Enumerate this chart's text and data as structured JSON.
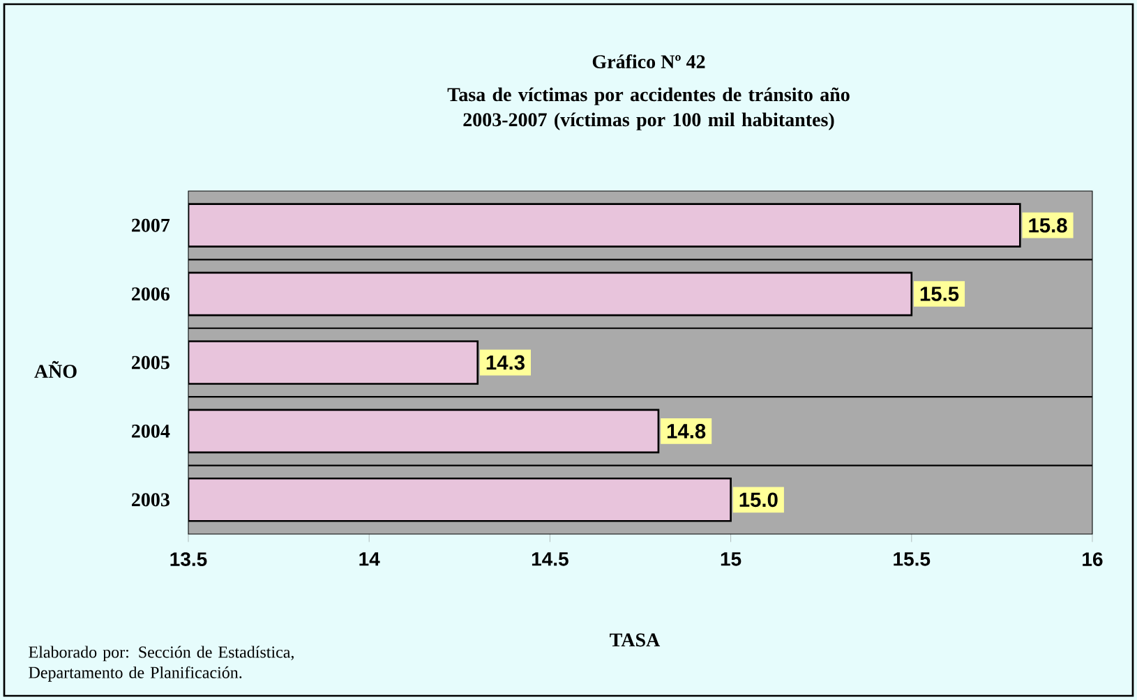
{
  "chart_data": {
    "type": "bar",
    "orientation": "horizontal",
    "title": "Gráfico Nº 42",
    "subtitle": "Tasa de víctimas por accidentes de tránsito año 2003-2007 (víctimas por 100 mil habitantes)",
    "xlabel": "TASA",
    "ylabel": "AÑO",
    "categories": [
      "2007",
      "2006",
      "2005",
      "2004",
      "2003"
    ],
    "values": [
      15.8,
      15.5,
      14.3,
      14.8,
      15.0
    ],
    "value_labels": [
      "15.8",
      "15.5",
      "14.3",
      "14.8",
      "15.0"
    ],
    "color": "#e8c4dc",
    "xlim": [
      13.5,
      16
    ],
    "xticks": [
      13.5,
      14,
      14.5,
      15,
      15.5,
      16
    ],
    "grid": "y",
    "annotations": [
      "Elaborado por: Sección de Estadística, Departamento de Planificación."
    ]
  }
}
